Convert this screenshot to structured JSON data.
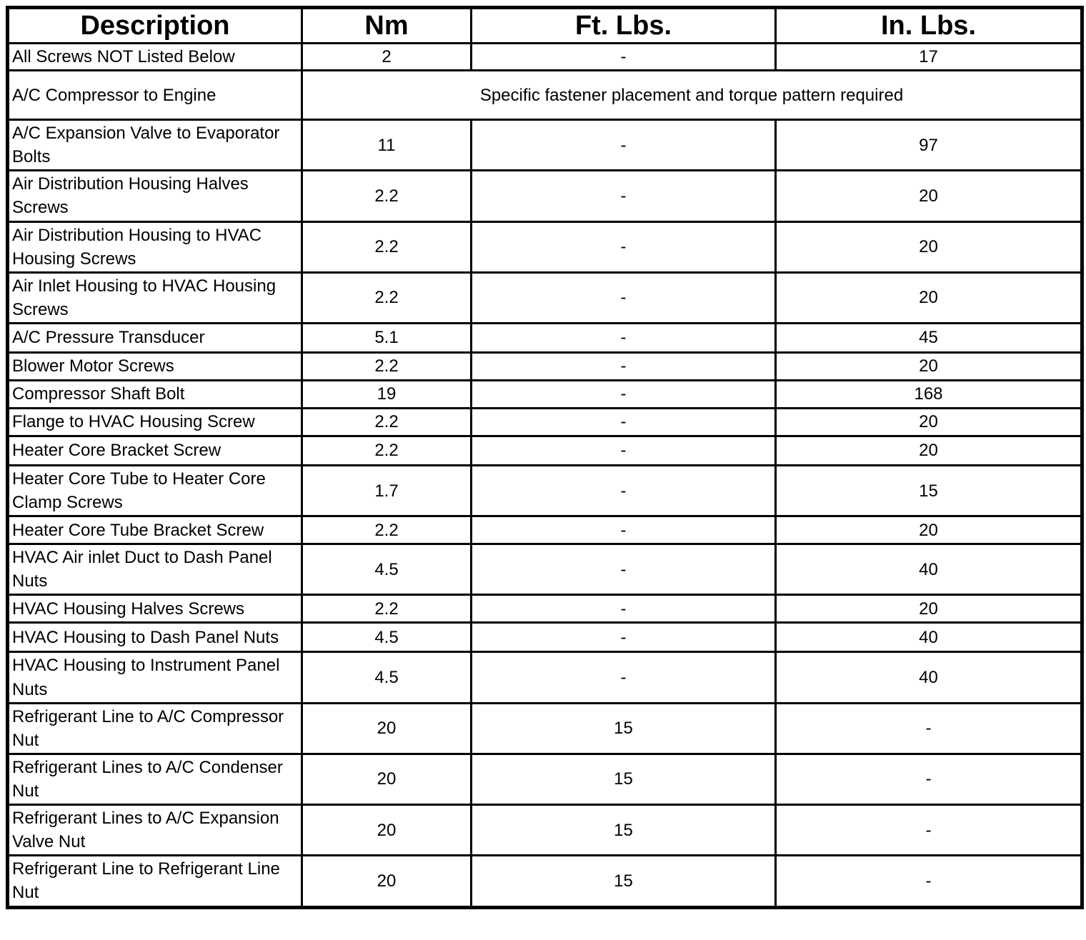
{
  "table": {
    "columns": [
      "Description",
      "Nm",
      "Ft. Lbs.",
      "In. Lbs."
    ],
    "rows": [
      {
        "description": "All Screws NOT Listed Below",
        "nm": "2",
        "ft_lbs": "-",
        "in_lbs": "17"
      },
      {
        "description": "A/C Compressor to Engine",
        "note": "Specific fastener placement and torque pattern required"
      },
      {
        "description": "A/C Expansion Valve to Evaporator Bolts",
        "nm": "11",
        "ft_lbs": "-",
        "in_lbs": "97"
      },
      {
        "description": "Air Distribution Housing Halves Screws",
        "nm": "2.2",
        "ft_lbs": "-",
        "in_lbs": "20"
      },
      {
        "description": "Air Distribution Housing to HVAC Housing Screws",
        "nm": "2.2",
        "ft_lbs": "-",
        "in_lbs": "20"
      },
      {
        "description": "Air Inlet Housing to HVAC Housing Screws",
        "nm": "2.2",
        "ft_lbs": "-",
        "in_lbs": "20"
      },
      {
        "description": "A/C Pressure Transducer",
        "nm": "5.1",
        "ft_lbs": "-",
        "in_lbs": "45"
      },
      {
        "description": "Blower Motor Screws",
        "nm": "2.2",
        "ft_lbs": "-",
        "in_lbs": "20"
      },
      {
        "description": "Compressor Shaft Bolt",
        "nm": "19",
        "ft_lbs": "-",
        "in_lbs": "168"
      },
      {
        "description": "Flange to HVAC Housing Screw",
        "nm": "2.2",
        "ft_lbs": "-",
        "in_lbs": "20"
      },
      {
        "description": "Heater Core Bracket Screw",
        "nm": "2.2",
        "ft_lbs": "-",
        "in_lbs": "20"
      },
      {
        "description": "Heater Core Tube to Heater Core Clamp Screws",
        "nm": "1.7",
        "ft_lbs": "-",
        "in_lbs": "15"
      },
      {
        "description": "Heater Core Tube Bracket Screw",
        "nm": "2.2",
        "ft_lbs": "-",
        "in_lbs": "20"
      },
      {
        "description": "HVAC Air inlet Duct to Dash Panel Nuts",
        "nm": "4.5",
        "ft_lbs": "-",
        "in_lbs": "40"
      },
      {
        "description": "HVAC Housing Halves Screws",
        "nm": "2.2",
        "ft_lbs": "-",
        "in_lbs": "20"
      },
      {
        "description": "HVAC Housing to Dash Panel Nuts",
        "nm": "4.5",
        "ft_lbs": "-",
        "in_lbs": "40"
      },
      {
        "description": "HVAC Housing to Instrument Panel Nuts",
        "nm": "4.5",
        "ft_lbs": "-",
        "in_lbs": "40"
      },
      {
        "description": "Refrigerant Line to A/C Compressor Nut",
        "nm": "20",
        "ft_lbs": "15",
        "in_lbs": "-"
      },
      {
        "description": "Refrigerant Lines to A/C Condenser Nut",
        "nm": "20",
        "ft_lbs": "15",
        "in_lbs": "-"
      },
      {
        "description": "Refrigerant Lines to A/C Expansion Valve Nut",
        "nm": "20",
        "ft_lbs": "15",
        "in_lbs": "-"
      },
      {
        "description": "Refrigerant Line to Refrigerant Line Nut",
        "nm": "20",
        "ft_lbs": "15",
        "in_lbs": "-"
      }
    ]
  }
}
